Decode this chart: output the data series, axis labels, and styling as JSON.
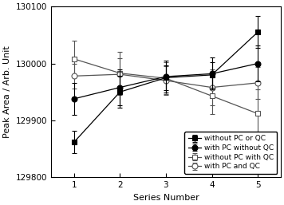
{
  "x": [
    1,
    2,
    3,
    4,
    5
  ],
  "series": [
    {
      "key": "without_PC_or_QC",
      "y": [
        129862,
        129950,
        129975,
        129980,
        130055
      ],
      "yerr": [
        20,
        28,
        22,
        22,
        28
      ],
      "label": "without PC or QC",
      "marker": "s",
      "mfc": "#000000",
      "mec": "#000000",
      "color": "#000000",
      "markersize": 5,
      "linestyle": "-",
      "zorder": 4
    },
    {
      "key": "with_PC_without_QC",
      "y": [
        129938,
        129958,
        129977,
        129982,
        130000
      ],
      "yerr": [
        28,
        32,
        28,
        28,
        32
      ],
      "label": "with PC without QC",
      "marker": "o",
      "mfc": "#000000",
      "mec": "#000000",
      "color": "#000000",
      "markersize": 5,
      "linestyle": "-",
      "zorder": 4
    },
    {
      "key": "without_PC_with_QC",
      "y": [
        130008,
        129983,
        129974,
        129943,
        129912
      ],
      "yerr": [
        32,
        38,
        28,
        32,
        42
      ],
      "label": "without PC with QC",
      "marker": "s",
      "mfc": "#ffffff",
      "mec": "#555555",
      "color": "#555555",
      "markersize": 5,
      "linestyle": "-",
      "zorder": 3
    },
    {
      "key": "with_PC_and_QC",
      "y": [
        129978,
        129981,
        129970,
        129958,
        129966
      ],
      "yerr": [
        22,
        28,
        25,
        32,
        28
      ],
      "label": "with PC and QC",
      "marker": "o",
      "mfc": "#ffffff",
      "mec": "#555555",
      "color": "#555555",
      "markersize": 5,
      "linestyle": "-",
      "zorder": 3
    }
  ],
  "xlim": [
    0.5,
    5.5
  ],
  "ylim": [
    129800,
    130100
  ],
  "yticks": [
    129800,
    129900,
    130000,
    130100
  ],
  "xticks": [
    1,
    2,
    3,
    4,
    5
  ],
  "xlabel": "Series Number",
  "ylabel": "Peak Area / Arb. Unit",
  "figsize": [
    3.56,
    2.57
  ],
  "dpi": 100
}
